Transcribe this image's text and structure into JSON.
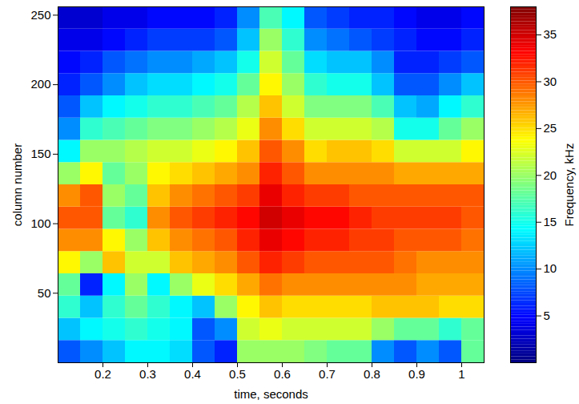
{
  "chart_data": {
    "type": "heatmap",
    "xlabel": "time, seconds",
    "ylabel": "column number",
    "xlim": [
      0.1,
      1.05
    ],
    "xticks": [
      0.2,
      0.3,
      0.4,
      0.5,
      0.6,
      0.7,
      0.8,
      0.9,
      1
    ],
    "ylim": [
      0,
      256
    ],
    "yticks": [
      50,
      100,
      150,
      200,
      250
    ],
    "x_edges": [
      0.1,
      0.15,
      0.2,
      0.25,
      0.3,
      0.35,
      0.4,
      0.45,
      0.5,
      0.55,
      0.6,
      0.65,
      0.7,
      0.75,
      0.8,
      0.85,
      0.9,
      0.95,
      1.0,
      1.05
    ],
    "y_edges": [
      0,
      16,
      32,
      48,
      64,
      80,
      96,
      112,
      128,
      144,
      160,
      176,
      192,
      208,
      224,
      240,
      256
    ],
    "cells": [
      [
        8,
        10,
        12,
        14,
        14,
        13,
        8,
        6,
        20,
        20,
        20,
        19,
        18,
        18,
        10,
        8,
        10,
        8,
        18
      ],
      [
        12,
        14,
        15,
        16,
        15,
        14,
        8,
        10,
        22,
        23,
        22,
        22,
        22,
        22,
        20,
        18,
        18,
        16,
        18
      ],
      [
        16,
        12,
        16,
        18,
        16,
        14,
        12,
        20,
        24,
        26,
        25,
        25,
        25,
        25,
        26,
        26,
        26,
        25,
        25
      ],
      [
        18,
        6,
        14,
        20,
        14,
        20,
        23,
        25,
        27,
        29,
        28,
        28,
        28,
        28,
        28,
        28,
        27,
        27,
        27
      ],
      [
        24,
        20,
        26,
        22,
        22,
        26,
        27,
        28,
        30,
        32,
        31,
        30,
        30,
        30,
        30,
        29,
        28,
        28,
        28
      ],
      [
        28,
        28,
        24,
        20,
        26,
        28,
        29,
        30,
        32,
        34,
        33,
        32,
        32,
        31,
        31,
        30,
        30,
        30,
        29
      ],
      [
        30,
        30,
        18,
        16,
        28,
        30,
        31,
        32,
        33,
        35,
        34,
        33,
        33,
        32,
        31,
        31,
        31,
        31,
        30
      ],
      [
        28,
        30,
        20,
        18,
        26,
        28,
        29,
        30,
        31,
        34,
        32,
        31,
        31,
        30,
        30,
        30,
        30,
        30,
        30
      ],
      [
        20,
        24,
        18,
        20,
        24,
        25,
        26,
        27,
        28,
        32,
        30,
        28,
        28,
        28,
        28,
        27,
        27,
        27,
        27
      ],
      [
        14,
        20,
        20,
        21,
        22,
        22,
        23,
        24,
        26,
        30,
        28,
        25,
        26,
        26,
        25,
        22,
        22,
        22,
        24
      ],
      [
        10,
        16,
        17,
        18,
        19,
        19,
        20,
        21,
        23,
        28,
        25,
        22,
        22,
        22,
        21,
        15,
        15,
        18,
        20
      ],
      [
        8,
        12,
        14,
        15,
        16,
        16,
        17,
        18,
        21,
        26,
        22,
        19,
        19,
        19,
        17,
        12,
        11,
        14,
        16
      ],
      [
        6,
        8,
        10,
        12,
        13,
        13,
        14,
        15,
        18,
        24,
        20,
        16,
        15,
        15,
        12,
        8,
        8,
        10,
        12
      ],
      [
        5,
        6,
        8,
        9,
        10,
        10,
        11,
        12,
        15,
        22,
        18,
        13,
        12,
        12,
        10,
        6,
        6,
        7,
        8
      ],
      [
        4,
        4,
        5,
        6,
        7,
        7,
        7,
        8,
        12,
        20,
        16,
        10,
        9,
        8,
        7,
        6,
        5,
        5,
        6
      ],
      [
        3,
        3,
        4,
        4,
        5,
        5,
        5,
        6,
        10,
        17,
        14,
        8,
        7,
        6,
        6,
        5,
        4,
        4,
        5
      ]
    ],
    "colorbar": {
      "label": "Frequency, kHz",
      "range": [
        0,
        38
      ],
      "ticks": [
        5,
        10,
        15,
        20,
        25,
        30,
        35
      ]
    }
  }
}
